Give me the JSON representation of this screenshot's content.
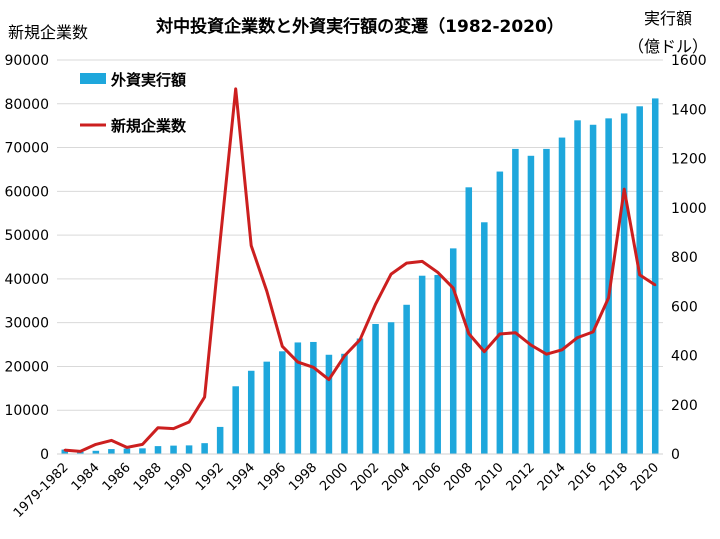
{
  "chart_data": {
    "type": "bar+line",
    "title": "対中投資企業数と外資実行額の変遷（1982-2020）",
    "left_axis_label": "新規企業数",
    "right_axis_label_line1": "実行額",
    "right_axis_label_line2": "（億ドル）",
    "left_ylim": [
      0,
      90000
    ],
    "left_ticks": [
      "0",
      "10000",
      "20000",
      "30000",
      "40000",
      "50000",
      "60000",
      "70000",
      "80000",
      "90000"
    ],
    "right_ylim": [
      0,
      1600
    ],
    "right_ticks": [
      "0",
      "200",
      "400",
      "600",
      "800",
      "1000",
      "1200",
      "1400",
      "1600"
    ],
    "categories": [
      "1979-1982",
      "1983",
      "1984",
      "1985",
      "1986",
      "1987",
      "1988",
      "1989",
      "1990",
      "1991",
      "1992",
      "1993",
      "1994",
      "1995",
      "1996",
      "1997",
      "1998",
      "1999",
      "2000",
      "2001",
      "2002",
      "2003",
      "2004",
      "2005",
      "2006",
      "2007",
      "2008",
      "2009",
      "2010",
      "2011",
      "2012",
      "2013",
      "2014",
      "2015",
      "2016",
      "2017",
      "2018",
      "2019",
      "2020"
    ],
    "x_tick_labels": [
      "1979-1982",
      "1984",
      "1986",
      "1988",
      "1990",
      "1992",
      "1994",
      "1996",
      "1998",
      "2000",
      "2002",
      "2004",
      "2006",
      "2008",
      "2010",
      "2012",
      "2014",
      "2016",
      "2018",
      "2020"
    ],
    "series": [
      {
        "name": "外資実行額",
        "type": "bar",
        "axis": "right",
        "color": "#1ea7dc",
        "values": [
          18,
          9,
          13,
          20,
          22,
          23,
          32,
          34,
          35,
          44,
          110,
          275,
          338,
          375,
          417,
          453,
          455,
          403,
          407,
          469,
          528,
          535,
          606,
          724,
          727,
          835,
          1083,
          941,
          1147,
          1239,
          1211,
          1239,
          1285,
          1355,
          1337,
          1363,
          1383,
          1412,
          1444
        ]
      },
      {
        "name": "新規企業数",
        "type": "line",
        "axis": "left",
        "color": "#cc1f1f",
        "values": [
          900,
          600,
          2200,
          3100,
          1500,
          2200,
          6000,
          5800,
          7300,
          13000,
          48800,
          83400,
          47600,
          37200,
          24600,
          21000,
          19800,
          17000,
          22400,
          26100,
          34200,
          41100,
          43600,
          44000,
          41500,
          37900,
          27500,
          23400,
          27400,
          27700,
          24900,
          22800,
          23800,
          26600,
          27900,
          35700,
          60500,
          40900,
          38600
        ]
      }
    ]
  }
}
